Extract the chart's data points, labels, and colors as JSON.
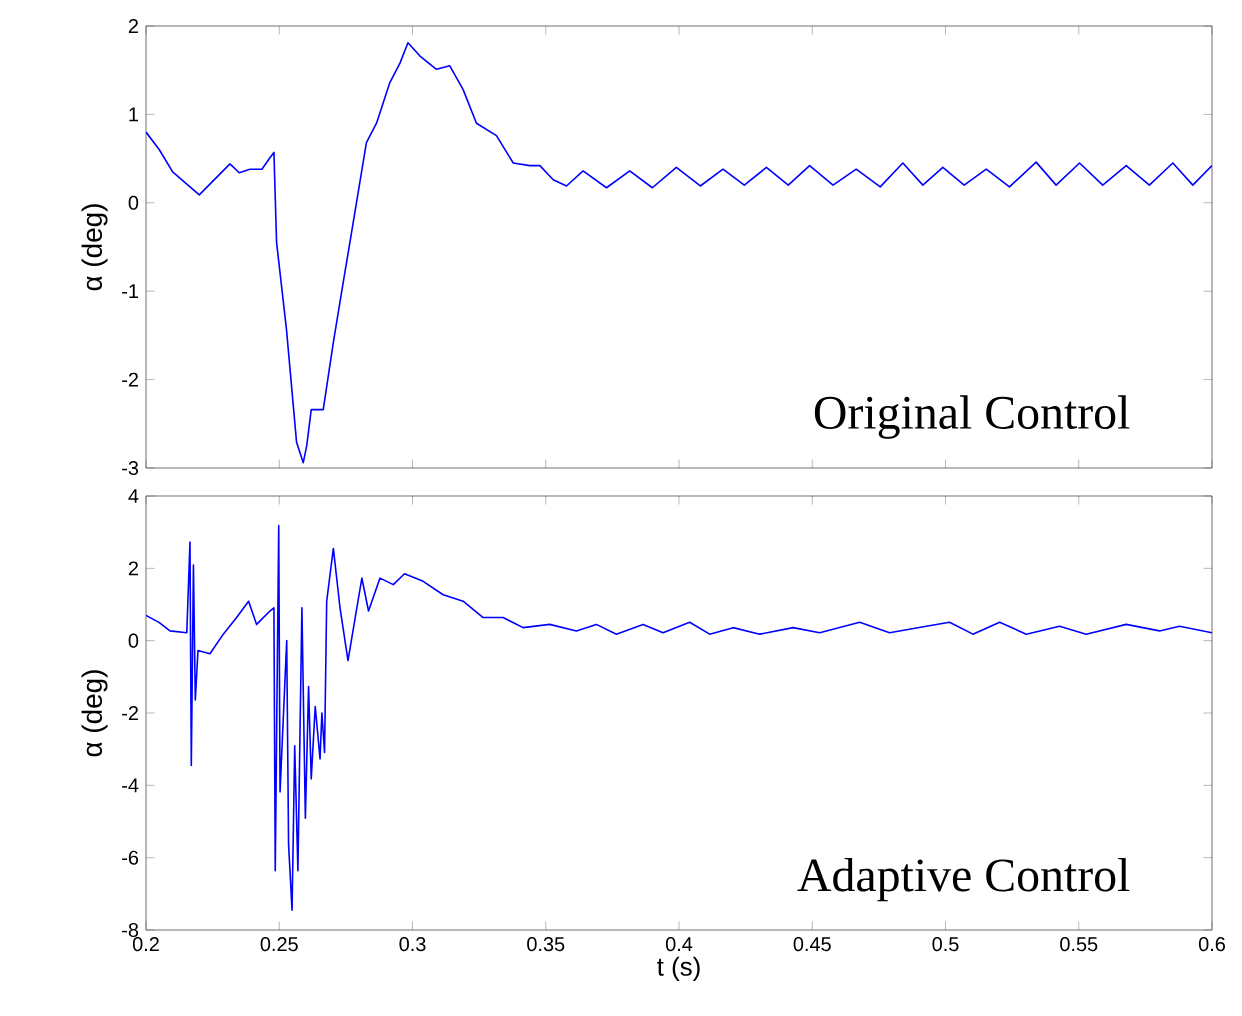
{
  "chart_data": [
    {
      "type": "line",
      "ylabel": "α (deg)",
      "annotations": [
        "Original Control"
      ],
      "color": "#0000ff",
      "xlim": [
        0.2,
        0.6
      ],
      "xticks": [
        0.2,
        0.25,
        0.3,
        0.35,
        0.4,
        0.45,
        0.5,
        0.55,
        0.6
      ],
      "ylim": [
        -3,
        2
      ],
      "yticks": [
        -3,
        -2,
        -1,
        0,
        1,
        2
      ],
      "tick_labels": "y",
      "grid": false,
      "x": [
        0.2,
        0.205,
        0.21,
        0.22,
        0.2315,
        0.235,
        0.239,
        0.2435,
        0.2465,
        0.248,
        0.249,
        0.2527,
        0.2565,
        0.259,
        0.2603,
        0.262,
        0.2665,
        0.2703,
        0.274,
        0.2765,
        0.2827,
        0.2865,
        0.2915,
        0.2953,
        0.2983,
        0.3028,
        0.309,
        0.314,
        0.319,
        0.324,
        0.3315,
        0.3378,
        0.344,
        0.3478,
        0.3528,
        0.3578,
        0.364,
        0.3728,
        0.3815,
        0.39,
        0.399,
        0.408,
        0.4165,
        0.4245,
        0.4328,
        0.441,
        0.449,
        0.4578,
        0.4665,
        0.4755,
        0.484,
        0.4915,
        0.499,
        0.507,
        0.5153,
        0.524,
        0.534,
        0.5415,
        0.5503,
        0.559,
        0.5678,
        0.5765,
        0.5853,
        0.5928,
        0.6
      ],
      "values": [
        0.8,
        0.6,
        0.35,
        0.09,
        0.44,
        0.34,
        0.38,
        0.38,
        0.51,
        0.57,
        -0.45,
        -1.43,
        -2.71,
        -2.94,
        -2.75,
        -2.34,
        -2.34,
        -1.58,
        -0.9,
        -0.45,
        0.68,
        0.9,
        1.36,
        1.58,
        1.81,
        1.66,
        1.51,
        1.55,
        1.28,
        0.9,
        0.76,
        0.45,
        0.42,
        0.42,
        0.26,
        0.19,
        0.36,
        0.17,
        0.36,
        0.17,
        0.4,
        0.19,
        0.38,
        0.2,
        0.4,
        0.2,
        0.42,
        0.2,
        0.38,
        0.18,
        0.45,
        0.2,
        0.4,
        0.2,
        0.38,
        0.18,
        0.46,
        0.2,
        0.45,
        0.2,
        0.42,
        0.2,
        0.45,
        0.2,
        0.42
      ]
    },
    {
      "type": "line",
      "xlabel": "t (s)",
      "ylabel": "α (deg)",
      "annotations": [
        "Adaptive Control"
      ],
      "color": "#0000ff",
      "xlim": [
        0.2,
        0.6
      ],
      "xticks": [
        0.2,
        0.25,
        0.3,
        0.35,
        0.4,
        0.45,
        0.5,
        0.55,
        0.6
      ],
      "ylim": [
        -8,
        4
      ],
      "yticks": [
        -8,
        -6,
        -4,
        -2,
        0,
        2,
        4
      ],
      "grid": false,
      "x": [
        0.2,
        0.205,
        0.209,
        0.2153,
        0.2165,
        0.217,
        0.2178,
        0.2185,
        0.2195,
        0.224,
        0.229,
        0.234,
        0.2385,
        0.2415,
        0.2465,
        0.248,
        0.2485,
        0.2498,
        0.2503,
        0.2528,
        0.2535,
        0.2548,
        0.2558,
        0.257,
        0.2585,
        0.2598,
        0.261,
        0.262,
        0.2635,
        0.2653,
        0.266,
        0.267,
        0.2678,
        0.2703,
        0.2728,
        0.2758,
        0.2785,
        0.281,
        0.2835,
        0.2878,
        0.2928,
        0.297,
        0.304,
        0.3115,
        0.319,
        0.3265,
        0.334,
        0.3415,
        0.3515,
        0.3615,
        0.369,
        0.3765,
        0.3865,
        0.394,
        0.404,
        0.4115,
        0.4203,
        0.4303,
        0.4428,
        0.4528,
        0.4678,
        0.479,
        0.4928,
        0.5015,
        0.5103,
        0.5203,
        0.5303,
        0.5428,
        0.5528,
        0.5678,
        0.5803,
        0.5878,
        0.6
      ],
      "values": [
        0.7,
        0.5,
        0.27,
        0.22,
        2.73,
        -3.45,
        2.09,
        -1.64,
        -0.27,
        -0.36,
        0.18,
        0.64,
        1.09,
        0.45,
        0.82,
        0.91,
        -6.36,
        3.18,
        -4.18,
        0,
        -5.64,
        -7.45,
        -2.91,
        -6.36,
        0.91,
        -4.91,
        -1.27,
        -3.82,
        -1.82,
        -3.27,
        -2.0,
        -3.09,
        1.09,
        2.55,
        0.91,
        -0.55,
        0.64,
        1.73,
        0.82,
        1.73,
        1.55,
        1.85,
        1.64,
        1.27,
        1.09,
        0.64,
        0.64,
        0.36,
        0.45,
        0.27,
        0.45,
        0.18,
        0.45,
        0.22,
        0.51,
        0.18,
        0.36,
        0.18,
        0.36,
        0.22,
        0.51,
        0.22,
        0.4,
        0.51,
        0.18,
        0.51,
        0.18,
        0.4,
        0.18,
        0.45,
        0.27,
        0.4,
        0.22
      ]
    }
  ]
}
